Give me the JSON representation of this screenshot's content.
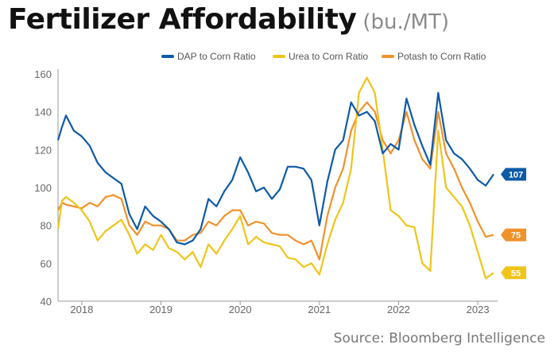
{
  "header": {
    "title": "Fertilizer Affordability",
    "subtitle": "(bu./MT)"
  },
  "source": "Source: Bloomberg Intelligence",
  "chart_data": {
    "type": "line",
    "ylim": [
      40,
      160
    ],
    "yticks": [
      40,
      60,
      80,
      100,
      120,
      140,
      160
    ],
    "xlim": [
      2017.7,
      2023.25
    ],
    "xticks": [
      {
        "label": "2018",
        "x": 2018.0
      },
      {
        "label": "2019",
        "x": 2019.0
      },
      {
        "label": "2020",
        "x": 2020.0
      },
      {
        "label": "2021",
        "x": 2021.0
      },
      {
        "label": "2022",
        "x": 2022.0
      },
      {
        "label": "2023",
        "x": 2023.0
      }
    ],
    "grid": false,
    "legend": "top",
    "series": [
      {
        "name": "DAP to Corn Ratio",
        "color": "#0d5aa7",
        "end_label": "107",
        "x": [
          2017.7,
          2017.75,
          2017.8,
          2017.9,
          2018.0,
          2018.1,
          2018.2,
          2018.3,
          2018.4,
          2018.5,
          2018.6,
          2018.7,
          2018.8,
          2018.9,
          2019.0,
          2019.1,
          2019.2,
          2019.3,
          2019.4,
          2019.5,
          2019.6,
          2019.7,
          2019.8,
          2019.9,
          2020.0,
          2020.1,
          2020.2,
          2020.3,
          2020.4,
          2020.5,
          2020.6,
          2020.7,
          2020.8,
          2020.9,
          2021.0,
          2021.1,
          2021.2,
          2021.3,
          2021.4,
          2021.5,
          2021.6,
          2021.7,
          2021.8,
          2021.9,
          2022.0,
          2022.1,
          2022.2,
          2022.3,
          2022.4,
          2022.5,
          2022.6,
          2022.7,
          2022.8,
          2022.9,
          2023.0,
          2023.1,
          2023.2
        ],
        "y": [
          125,
          132,
          138,
          130,
          127,
          122,
          113,
          108,
          105,
          102,
          86,
          78,
          90,
          85,
          82,
          78,
          71,
          70,
          72,
          78,
          94,
          90,
          98,
          104,
          116,
          108,
          98,
          100,
          94,
          99,
          111,
          111,
          110,
          104,
          80,
          103,
          120,
          125,
          145,
          138,
          140,
          135,
          118,
          123,
          120,
          147,
          133,
          122,
          112,
          150,
          125,
          118,
          115,
          110,
          104,
          101,
          107
        ]
      },
      {
        "name": "Urea to Corn Ratio",
        "color": "#f0c419",
        "end_label": "55",
        "x": [
          2017.7,
          2017.75,
          2017.8,
          2017.9,
          2018.0,
          2018.1,
          2018.2,
          2018.3,
          2018.4,
          2018.5,
          2018.6,
          2018.7,
          2018.8,
          2018.9,
          2019.0,
          2019.1,
          2019.2,
          2019.3,
          2019.4,
          2019.5,
          2019.6,
          2019.7,
          2019.8,
          2019.9,
          2020.0,
          2020.1,
          2020.2,
          2020.3,
          2020.4,
          2020.5,
          2020.6,
          2020.7,
          2020.8,
          2020.9,
          2021.0,
          2021.1,
          2021.2,
          2021.3,
          2021.4,
          2021.5,
          2021.6,
          2021.7,
          2021.8,
          2021.9,
          2022.0,
          2022.1,
          2022.2,
          2022.3,
          2022.4,
          2022.5,
          2022.6,
          2022.7,
          2022.8,
          2022.9,
          2023.0,
          2023.1,
          2023.2
        ],
        "y": [
          78,
          93,
          95,
          92,
          88,
          82,
          72,
          77,
          80,
          83,
          75,
          65,
          70,
          67,
          75,
          68,
          66,
          62,
          66,
          58,
          70,
          65,
          72,
          78,
          85,
          70,
          74,
          71,
          70,
          69,
          63,
          62,
          58,
          60,
          54,
          70,
          83,
          92,
          110,
          150,
          158,
          150,
          120,
          88,
          85,
          80,
          79,
          60,
          56,
          130,
          100,
          95,
          90,
          80,
          66,
          52,
          55
        ]
      },
      {
        "name": "Potash to Corn Ratio",
        "color": "#f0912a",
        "end_label": "75",
        "x": [
          2017.7,
          2017.75,
          2017.8,
          2017.9,
          2018.0,
          2018.1,
          2018.2,
          2018.3,
          2018.4,
          2018.5,
          2018.6,
          2018.7,
          2018.8,
          2018.9,
          2019.0,
          2019.1,
          2019.2,
          2019.3,
          2019.4,
          2019.5,
          2019.6,
          2019.7,
          2019.8,
          2019.9,
          2020.0,
          2020.1,
          2020.2,
          2020.3,
          2020.4,
          2020.5,
          2020.6,
          2020.7,
          2020.8,
          2020.9,
          2021.0,
          2021.1,
          2021.2,
          2021.3,
          2021.4,
          2021.5,
          2021.6,
          2021.7,
          2021.8,
          2021.9,
          2022.0,
          2022.1,
          2022.2,
          2022.3,
          2022.4,
          2022.5,
          2022.6,
          2022.7,
          2022.8,
          2022.9,
          2023.0,
          2023.1,
          2023.2
        ],
        "y": [
          88,
          92,
          91,
          90,
          89,
          92,
          90,
          95,
          96,
          94,
          80,
          75,
          82,
          80,
          80,
          78,
          72,
          72,
          75,
          76,
          82,
          80,
          85,
          88,
          88,
          80,
          82,
          81,
          76,
          75,
          75,
          72,
          70,
          72,
          62,
          85,
          100,
          110,
          130,
          140,
          145,
          140,
          125,
          118,
          125,
          140,
          125,
          115,
          110,
          140,
          118,
          110,
          100,
          92,
          82,
          74,
          75
        ]
      }
    ]
  }
}
